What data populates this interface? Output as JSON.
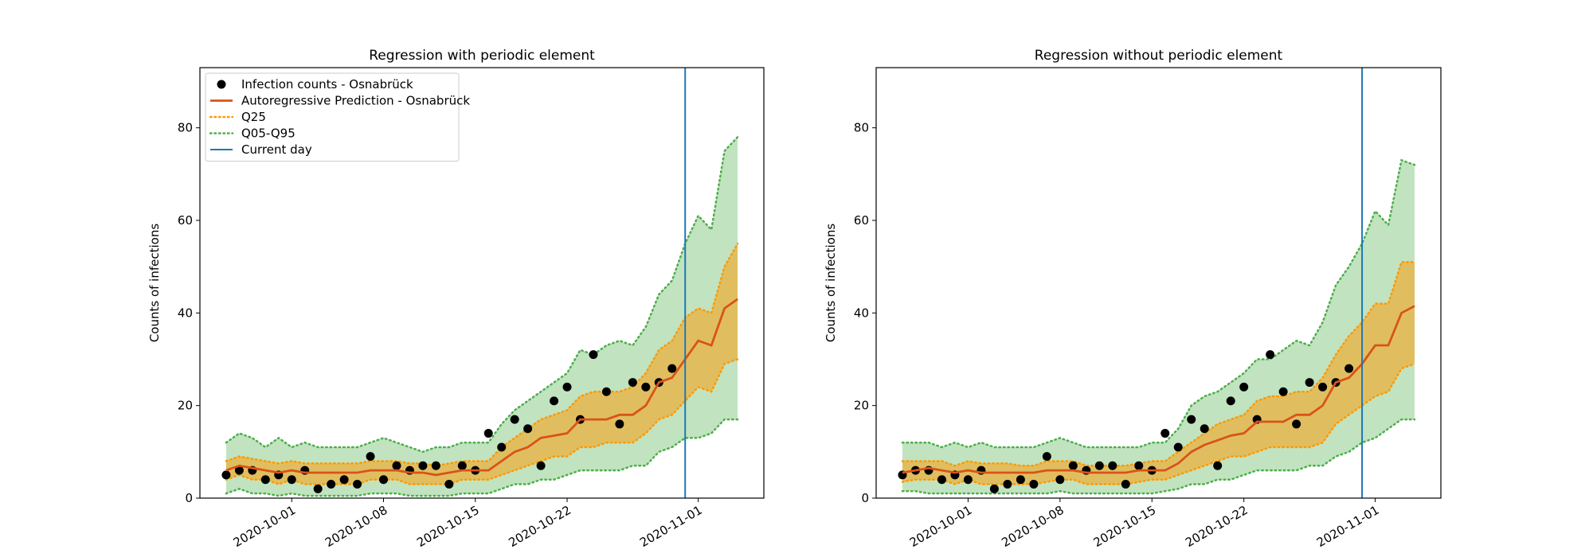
{
  "chart_data": [
    {
      "type": "line",
      "title": "Regression with periodic element",
      "ylabel": "Counts of infections",
      "x": [
        "2020-09-26",
        "2020-09-27",
        "2020-09-28",
        "2020-09-29",
        "2020-09-30",
        "2020-10-01",
        "2020-10-02",
        "2020-10-03",
        "2020-10-04",
        "2020-10-05",
        "2020-10-06",
        "2020-10-07",
        "2020-10-08",
        "2020-10-09",
        "2020-10-10",
        "2020-10-11",
        "2020-10-12",
        "2020-10-13",
        "2020-10-14",
        "2020-10-15",
        "2020-10-16",
        "2020-10-17",
        "2020-10-18",
        "2020-10-19",
        "2020-10-20",
        "2020-10-21",
        "2020-10-22",
        "2020-10-23",
        "2020-10-24",
        "2020-10-25",
        "2020-10-26",
        "2020-10-27",
        "2020-10-28",
        "2020-10-29",
        "2020-10-30",
        "2020-10-31",
        "2020-11-01",
        "2020-11-02",
        "2020-11-03",
        "2020-11-04"
      ],
      "xlim": [
        "2020-09-24",
        "2020-11-06"
      ],
      "xticks": [
        "2020-10-01",
        "2020-10-08",
        "2020-10-15",
        "2020-10-22",
        "2020-11-01"
      ],
      "ylim": [
        0,
        93
      ],
      "yticks": [
        0,
        20,
        40,
        60,
        80
      ],
      "legend": "upper left",
      "series": [
        {
          "name": "Infection counts - Osnabrück",
          "style": "markers",
          "color": "#000000",
          "values": [
            5,
            6,
            6,
            4,
            5,
            4,
            6,
            2,
            3,
            4,
            3,
            9,
            4,
            7,
            6,
            7,
            7,
            3,
            7,
            6,
            14,
            11,
            17,
            15,
            7,
            21,
            24,
            17,
            31,
            23,
            16,
            25,
            24,
            25,
            28,
            null,
            null,
            null,
            null,
            null
          ]
        },
        {
          "name": "Autoregressive Prediction - Osnabrück",
          "style": "line",
          "color": "#d95319",
          "values": [
            6,
            7,
            6.5,
            6,
            5.5,
            6,
            5.5,
            5.5,
            5.5,
            5.5,
            5.5,
            6,
            6,
            6,
            5.5,
            5.5,
            5,
            5.5,
            6,
            6,
            6,
            8,
            10,
            11,
            13,
            13.5,
            14,
            17,
            17,
            17,
            18,
            18,
            20,
            25,
            26,
            30,
            34,
            33,
            41,
            43
          ]
        }
      ],
      "bands": [
        {
          "name": "Q25",
          "color": "#ff9900",
          "opacity": 0.5,
          "lower": [
            4,
            5,
            4,
            4,
            3,
            4,
            3,
            3,
            3,
            3,
            3,
            4,
            4,
            4,
            3,
            3,
            3,
            3,
            4,
            4,
            4,
            5,
            6,
            7,
            8,
            9,
            9,
            11,
            11,
            12,
            12,
            12,
            14,
            17,
            18,
            21,
            24,
            23,
            29,
            30
          ],
          "upper": [
            8,
            9,
            8.5,
            8,
            7.5,
            8,
            7.5,
            7.5,
            7.5,
            7.5,
            7.5,
            8,
            8,
            8,
            7.5,
            7.5,
            7,
            7.5,
            8,
            8,
            8,
            11,
            13,
            15,
            17,
            18,
            19,
            22,
            23,
            23,
            23,
            24,
            27,
            32,
            34,
            39,
            41,
            40,
            50,
            55
          ]
        },
        {
          "name": "Q05-Q95",
          "color": "#4daf4a",
          "opacity": 0.35,
          "lower": [
            1,
            2,
            1,
            1,
            0.5,
            1,
            0.5,
            0.5,
            0.5,
            0.5,
            0.5,
            1,
            1,
            1,
            0.5,
            0.5,
            0.5,
            0.5,
            1,
            1,
            1,
            2,
            3,
            3,
            4,
            4,
            5,
            6,
            6,
            6,
            6,
            7,
            7,
            10,
            11,
            13,
            13,
            14,
            17,
            17
          ],
          "upper": [
            12,
            14,
            13,
            11,
            13,
            11,
            12,
            11,
            11,
            11,
            11,
            12,
            13,
            12,
            11,
            10,
            11,
            11,
            12,
            12,
            12,
            16,
            19,
            21,
            23,
            25,
            27,
            32,
            31,
            33,
            34,
            33,
            37,
            44,
            47,
            55,
            61,
            58,
            75,
            78
          ]
        }
      ],
      "vline": {
        "name": "Current day",
        "x": "2020-10-31",
        "color": "#1f77b4"
      }
    },
    {
      "type": "line",
      "title": "Regression without periodic element",
      "ylabel": "Counts of infections",
      "x": [
        "2020-09-26",
        "2020-09-27",
        "2020-09-28",
        "2020-09-29",
        "2020-09-30",
        "2020-10-01",
        "2020-10-02",
        "2020-10-03",
        "2020-10-04",
        "2020-10-05",
        "2020-10-06",
        "2020-10-07",
        "2020-10-08",
        "2020-10-09",
        "2020-10-10",
        "2020-10-11",
        "2020-10-12",
        "2020-10-13",
        "2020-10-14",
        "2020-10-15",
        "2020-10-16",
        "2020-10-17",
        "2020-10-18",
        "2020-10-19",
        "2020-10-20",
        "2020-10-21",
        "2020-10-22",
        "2020-10-23",
        "2020-10-24",
        "2020-10-25",
        "2020-10-26",
        "2020-10-27",
        "2020-10-28",
        "2020-10-29",
        "2020-10-30",
        "2020-10-31",
        "2020-11-01",
        "2020-11-02",
        "2020-11-03",
        "2020-11-04"
      ],
      "xlim": [
        "2020-09-24",
        "2020-11-06"
      ],
      "xticks": [
        "2020-10-01",
        "2020-10-08",
        "2020-10-15",
        "2020-10-22",
        "2020-11-01"
      ],
      "ylim": [
        0,
        93
      ],
      "yticks": [
        0,
        20,
        40,
        60,
        80
      ],
      "series": [
        {
          "style": "markers",
          "color": "#000000",
          "values": [
            5,
            6,
            6,
            4,
            5,
            4,
            6,
            2,
            3,
            4,
            3,
            9,
            4,
            7,
            6,
            7,
            7,
            3,
            7,
            6,
            14,
            11,
            17,
            15,
            7,
            21,
            24,
            17,
            31,
            23,
            16,
            25,
            24,
            25,
            28,
            null,
            null,
            null,
            null,
            null
          ]
        },
        {
          "style": "line",
          "color": "#d95319",
          "values": [
            5.5,
            6,
            6.5,
            6,
            5.5,
            6,
            5.5,
            5.5,
            5.5,
            5.5,
            5.5,
            6,
            6,
            6,
            5.5,
            5.5,
            5.5,
            5.5,
            6,
            6,
            6,
            7.5,
            10,
            11.5,
            12.5,
            13.5,
            14,
            16.5,
            16.5,
            16.5,
            18,
            18,
            20,
            25,
            26,
            29,
            33,
            33,
            40,
            41.5
          ]
        }
      ],
      "bands": [
        {
          "color": "#ff9900",
          "opacity": 0.5,
          "lower": [
            3.5,
            4,
            4,
            4,
            3,
            4,
            3,
            3,
            3,
            3,
            3,
            3.5,
            4,
            4,
            3,
            3,
            3,
            3,
            3.5,
            4,
            4,
            5,
            6,
            7,
            8,
            9,
            9,
            10,
            11,
            11,
            11,
            11,
            12,
            16,
            18,
            20,
            22,
            23,
            28,
            29
          ],
          "upper": [
            8,
            8,
            8,
            8,
            7,
            8,
            7.5,
            7.5,
            7.5,
            7,
            7,
            8,
            8,
            8,
            7,
            7,
            7,
            7,
            7.5,
            8,
            8,
            10,
            12,
            14,
            16,
            17,
            18,
            21,
            22,
            22,
            23,
            23,
            26,
            31,
            35,
            38,
            42,
            42,
            51,
            51
          ]
        },
        {
          "color": "#4daf4a",
          "opacity": 0.35,
          "lower": [
            1.5,
            1.5,
            1,
            1,
            1,
            1,
            1,
            1,
            1,
            1,
            1,
            1,
            1.5,
            1,
            1,
            1,
            1,
            1,
            1,
            1,
            1.5,
            2,
            3,
            3,
            4,
            4,
            5,
            6,
            6,
            6,
            6,
            7,
            7,
            9,
            10,
            12,
            13,
            15,
            17,
            17
          ],
          "upper": [
            12,
            12,
            12,
            11,
            12,
            11,
            12,
            11,
            11,
            11,
            11,
            12,
            13,
            12,
            11,
            11,
            11,
            11,
            11,
            12,
            12,
            15,
            20,
            22,
            23,
            25,
            27,
            30,
            30,
            32,
            34,
            33,
            38,
            46,
            50,
            55,
            62,
            59,
            73,
            72
          ]
        }
      ],
      "vline": {
        "x": "2020-10-31",
        "color": "#1f77b4"
      }
    }
  ]
}
